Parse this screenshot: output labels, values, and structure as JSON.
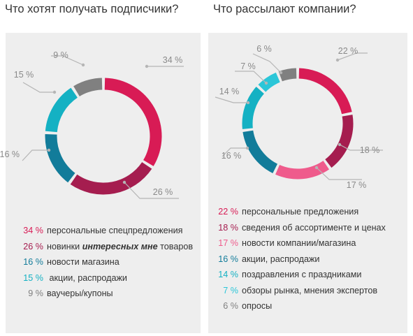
{
  "chart_data": [
    {
      "type": "donut",
      "title": "Что хотят получать подписчики?",
      "categories": [
        "персональные спецпредложения",
        "новинки интересных мне товаров",
        "новости магазина",
        "акции, распродажи",
        "ваучеры/купоны"
      ],
      "values": [
        34,
        26,
        16,
        15,
        9
      ],
      "colors": [
        "#d81b55",
        "#a51d4f",
        "#127c9a",
        "#14b1c3",
        "#808080"
      ],
      "value_labels": [
        "34 %",
        "26 %",
        "16 %",
        "15 %",
        "9 %"
      ],
      "legend": [
        {
          "pct": "34 %",
          "text": "персональные спецпредложения"
        },
        {
          "pct": "26 %",
          "text_before": "новинки ",
          "emphasis": "интересных мне",
          "text_after": " товаров"
        },
        {
          "pct": "16 %",
          "text": "новости магазина"
        },
        {
          "pct": "15 %",
          "text": " акции, распродажи"
        },
        {
          "pct": "9 %",
          "text": "ваучеры/купоны"
        }
      ]
    },
    {
      "type": "donut",
      "title": "Что рассылают компании?",
      "categories": [
        "персональные предложения",
        "сведения об ассортименте и ценах",
        "новости компании/магазина",
        "акции, распродажи",
        "поздравления с праздниками",
        "обзоры рынка, мнения экспертов",
        "опросы"
      ],
      "values": [
        22,
        18,
        17,
        16,
        14,
        7,
        6
      ],
      "colors": [
        "#d81b55",
        "#a51d4f",
        "#ef5b8c",
        "#127c9a",
        "#14b1c3",
        "#2bc6d8",
        "#808080"
      ],
      "value_labels": [
        "22 %",
        "18 %",
        "17 %",
        "16 %",
        "14 %",
        "7 %",
        "6 %"
      ],
      "legend": [
        {
          "pct": "22 %",
          "text": "персональные предложения"
        },
        {
          "pct": "18 %",
          "text": "сведения об ассортименте и ценах"
        },
        {
          "pct": "17 %",
          "text": "новости компании/магазина"
        },
        {
          "pct": "16 %",
          "text": "акции, распродажи"
        },
        {
          "pct": "14 %",
          "text": "поздравления с праздниками"
        },
        {
          "pct": "7 %",
          "text": "обзоры рынка, мнения экспертов"
        },
        {
          "pct": "6 %",
          "text": "опросы"
        }
      ]
    }
  ],
  "colors": {
    "panel_background": "#eeeeee",
    "leader_line": "#b5b5b5",
    "label_text": "#8a8a8a",
    "body_text": "#333333"
  }
}
